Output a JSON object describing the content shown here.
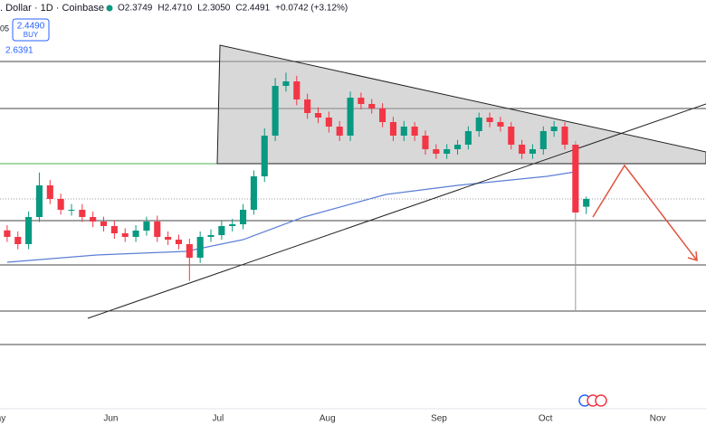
{
  "chart_data": {
    "type": "candlestick",
    "title": ". Dollar · 1D · Coinbase",
    "ohlc_legend": [
      "O2.3749",
      "H2.4710",
      "L2.3050",
      "C2.4491",
      "+0.0742 (+3.12%)"
    ],
    "corner_text": "05",
    "buy_price": "2.4490",
    "buy_label": "BUY",
    "indicator_value": "2.6391",
    "x": [
      1,
      4,
      7,
      10,
      13,
      16,
      19,
      22,
      25,
      28,
      31,
      34,
      37,
      40,
      43,
      46,
      49,
      52,
      55,
      58,
      61,
      64,
      67,
      70,
      73,
      76,
      79,
      82,
      85,
      88,
      91,
      94,
      97,
      100,
      103,
      106,
      109,
      112,
      115,
      118,
      121,
      124,
      127,
      130,
      133,
      136,
      139,
      142,
      145,
      148,
      151,
      154,
      157,
      160,
      163
    ],
    "open": [
      2.15,
      2.088,
      2.019,
      2.277,
      2.578,
      2.449,
      2.346,
      2.346,
      2.277,
      2.234,
      2.191,
      2.122,
      2.088,
      2.148,
      2.234,
      2.088,
      2.062,
      2.019,
      1.89,
      2.088,
      2.105,
      2.191,
      2.208,
      2.346,
      2.664,
      3.051,
      3.524,
      3.567,
      3.395,
      3.266,
      3.223,
      3.137,
      3.051,
      3.412,
      3.352,
      3.309,
      3.18,
      3.051,
      3.137,
      3.051,
      2.922,
      2.879,
      2.922,
      2.965,
      3.094,
      3.223,
      3.18,
      3.137,
      2.965,
      2.879,
      2.922,
      3.094,
      3.137,
      2.965,
      2.3749
    ],
    "high": [
      2.2,
      2.14,
      2.33,
      2.7,
      2.63,
      2.5,
      2.4,
      2.4,
      2.33,
      2.28,
      2.24,
      2.17,
      2.2,
      2.28,
      2.29,
      2.14,
      2.11,
      2.07,
      2.14,
      2.16,
      2.24,
      2.26,
      2.4,
      2.72,
      3.12,
      3.6,
      3.65,
      3.62,
      3.45,
      3.32,
      3.28,
      3.19,
      3.47,
      3.46,
      3.4,
      3.36,
      3.23,
      3.19,
      3.18,
      3.1,
      2.97,
      2.97,
      3.01,
      3.14,
      3.27,
      3.27,
      3.23,
      3.18,
      3.01,
      2.97,
      3.14,
      3.19,
      3.18,
      3.0,
      2.471
    ],
    "low": [
      2.04,
      1.97,
      1.97,
      2.23,
      2.4,
      2.3,
      2.29,
      2.23,
      2.18,
      2.14,
      2.07,
      2.04,
      2.04,
      2.1,
      2.04,
      2.01,
      1.97,
      1.67,
      1.84,
      2.04,
      2.06,
      2.14,
      2.16,
      2.3,
      2.61,
      3.0,
      3.47,
      3.34,
      3.21,
      3.17,
      3.08,
      3.0,
      3.0,
      3.3,
      3.26,
      3.13,
      3.0,
      3.0,
      3.0,
      2.87,
      2.83,
      2.83,
      2.87,
      2.92,
      3.04,
      3.13,
      3.09,
      2.92,
      2.83,
      2.83,
      2.87,
      3.04,
      2.92,
      1.391,
      2.305
    ],
    "close": [
      2.088,
      2.019,
      2.277,
      2.578,
      2.449,
      2.346,
      2.346,
      2.277,
      2.234,
      2.191,
      2.122,
      2.088,
      2.148,
      2.234,
      2.088,
      2.062,
      2.019,
      1.89,
      2.088,
      2.105,
      2.191,
      2.208,
      2.346,
      2.664,
      3.051,
      3.524,
      3.567,
      3.395,
      3.266,
      3.223,
      3.137,
      3.051,
      3.412,
      3.352,
      3.309,
      3.18,
      3.051,
      3.137,
      3.051,
      2.922,
      2.879,
      2.922,
      2.965,
      3.094,
      3.223,
      3.18,
      3.137,
      2.965,
      2.879,
      2.922,
      3.094,
      3.137,
      2.965,
      2.32,
      2.4491
    ],
    "up_color": "#089981",
    "down_color": "#f23645",
    "ma": {
      "color": "#5b7fd6",
      "x": [
        1,
        26,
        51,
        67,
        84,
        107,
        127,
        152,
        160
      ],
      "values": [
        1.847,
        1.916,
        1.95,
        2.062,
        2.277,
        2.492,
        2.578,
        2.664,
        2.707
      ]
    },
    "levels": [
      3.756,
      3.309,
      2.784,
      2.243,
      1.821,
      1.383,
      1.064
    ],
    "level_colors": [
      "#444444",
      "#444444",
      "#4caf50",
      "#444444",
      "#444444",
      "#444444",
      "#444444"
    ],
    "xlim": [
      -1,
      196.5
    ],
    "ylim": [
      0.471,
      4.341
    ],
    "xticks": [
      {
        "value": -1.8,
        "label": "May"
      },
      {
        "value": 30,
        "label": "Jun"
      },
      {
        "value": 60,
        "label": "Jul"
      },
      {
        "value": 90.6,
        "label": "Aug"
      },
      {
        "value": 121.8,
        "label": "Sep"
      },
      {
        "value": 151.6,
        "label": "Oct"
      },
      {
        "value": 183,
        "label": "Nov"
      }
    ]
  }
}
